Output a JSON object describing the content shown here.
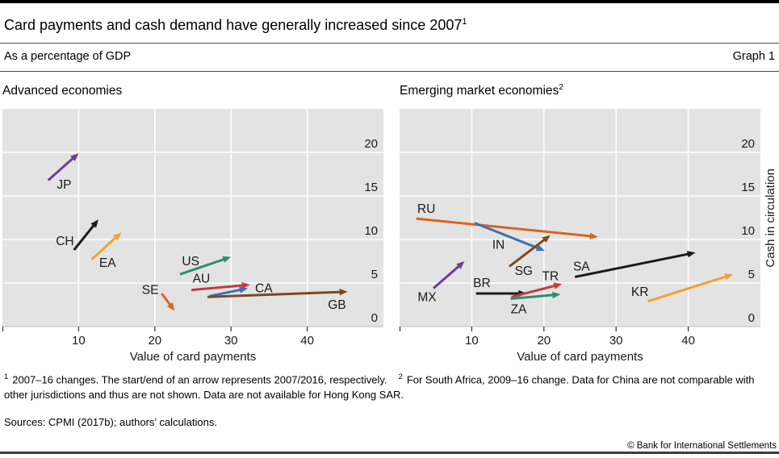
{
  "header": {
    "title": "Card payments and cash demand have generally increased since 2007",
    "title_sup": "1",
    "subtitle": "As a percentage of GDP",
    "graph_label": "Graph 1"
  },
  "chart_data": [
    {
      "type": "scatter",
      "subtype": "arrows",
      "title": "Advanced economies",
      "title_sup": "",
      "xlabel": "Value of card payments",
      "ylabel": "",
      "xlim": [
        0,
        50
      ],
      "ylim": [
        0,
        25
      ],
      "xticks": [
        10,
        20,
        30,
        40
      ],
      "yticks": [
        0,
        5,
        10,
        15,
        20
      ],
      "grid": "white on light-gray panel",
      "note": "arrow start = 2007 value, arrow end = 2016 value",
      "arrows": [
        {
          "code": "JP",
          "color": "#6a3d96",
          "start": [
            6.0,
            16.8
          ],
          "end": [
            10.0,
            19.9
          ],
          "label": [
            8.1,
            16.3
          ]
        },
        {
          "code": "CH",
          "color": "#1a1a1a",
          "start": [
            9.4,
            8.8
          ],
          "end": [
            12.6,
            12.3
          ],
          "label": [
            8.2,
            9.8
          ]
        },
        {
          "code": "EA",
          "color": "#efa232",
          "start": [
            11.7,
            7.7
          ],
          "end": [
            15.6,
            10.8
          ],
          "label": [
            13.8,
            7.3
          ]
        },
        {
          "code": "US",
          "color": "#2f8e70",
          "start": [
            23.3,
            6.0
          ],
          "end": [
            30.0,
            8.0
          ],
          "label": [
            24.7,
            7.5
          ]
        },
        {
          "code": "AU",
          "color": "#c23b3d",
          "start": [
            24.8,
            4.2
          ],
          "end": [
            32.5,
            4.8
          ],
          "label": [
            26.1,
            5.5
          ]
        },
        {
          "code": "SE",
          "color": "#dc6321",
          "start": [
            20.9,
            3.8
          ],
          "end": [
            22.6,
            1.8
          ],
          "label": [
            19.4,
            4.2
          ]
        },
        {
          "code": "CA",
          "color": "#3f6fb5",
          "start": [
            27.2,
            3.5
          ],
          "end": [
            32.2,
            4.4
          ],
          "label": [
            34.3,
            4.4
          ]
        },
        {
          "code": "GB",
          "color": "#7c4a1d",
          "start": [
            26.9,
            3.4
          ],
          "end": [
            45.3,
            4.0
          ],
          "label": [
            43.9,
            2.5
          ]
        }
      ]
    },
    {
      "type": "scatter",
      "subtype": "arrows",
      "title": "Emerging market economies",
      "title_sup": "2",
      "xlabel": "Value of card payments",
      "ylabel": "Cash in circulation",
      "xlim": [
        0,
        50
      ],
      "ylim": [
        0,
        25
      ],
      "xticks": [
        10,
        20,
        30,
        40
      ],
      "yticks": [
        0,
        5,
        10,
        15,
        20
      ],
      "grid": "white on light-gray panel",
      "note": "arrow start = 2007 value, arrow end = 2016 value; South Africa 2009-16",
      "arrows": [
        {
          "code": "RU",
          "color": "#dc6321",
          "start": [
            2.3,
            12.4
          ],
          "end": [
            27.5,
            10.3
          ],
          "label": [
            3.7,
            13.5
          ]
        },
        {
          "code": "IN",
          "color": "#3f6fb5",
          "start": [
            10.4,
            11.9
          ],
          "end": [
            20.1,
            8.7
          ],
          "label": [
            13.7,
            9.4
          ]
        },
        {
          "code": "SG",
          "color": "#7c4a1d",
          "start": [
            15.2,
            6.9
          ],
          "end": [
            20.9,
            10.5
          ],
          "label": [
            17.2,
            6.4
          ]
        },
        {
          "code": "MX",
          "color": "#6a3d96",
          "start": [
            4.7,
            4.4
          ],
          "end": [
            9.0,
            7.5
          ],
          "label": [
            3.8,
            3.4
          ]
        },
        {
          "code": "BR",
          "color": "#1a1a1a",
          "start": [
            10.6,
            3.8
          ],
          "end": [
            17.6,
            3.8
          ],
          "label": [
            11.4,
            5.0
          ]
        },
        {
          "code": "TR",
          "color": "#c23b3d",
          "start": [
            15.5,
            3.4
          ],
          "end": [
            22.5,
            4.9
          ],
          "label": [
            20.9,
            5.8
          ]
        },
        {
          "code": "ZA",
          "color": "#2f8e70",
          "start": [
            15.4,
            3.2
          ],
          "end": [
            22.3,
            3.7
          ],
          "label": [
            16.5,
            2.0
          ]
        },
        {
          "code": "SA",
          "color": "#1a1a1a",
          "start": [
            24.3,
            5.7
          ],
          "end": [
            41.0,
            8.5
          ],
          "label": [
            25.2,
            6.9
          ]
        },
        {
          "code": "KR",
          "color": "#efa232",
          "start": [
            34.4,
            2.9
          ],
          "end": [
            46.2,
            6.0
          ],
          "label": [
            33.3,
            4.0
          ]
        }
      ]
    }
  ],
  "footnotes": [
    {
      "marker": "1",
      "text": "2007–16 changes. The start/end of an arrow represents 2007/2016, respectively."
    },
    {
      "marker": "2",
      "text": "For South Africa, 2009–16 change. Data for China are not comparable with other jurisdictions and thus are not shown. Data are not available for Hong Kong SAR."
    }
  ],
  "sources": "Sources: CPMI (2017b); authors’ calculations.",
  "copyright": "© Bank for International Settlements",
  "style": {
    "panel_bg": "#e3e3e3",
    "gridline": "#ffffff",
    "tick_color": "#3d3d3d",
    "top_bar": "#000000",
    "bottom_bar": "#3d3d3d"
  }
}
